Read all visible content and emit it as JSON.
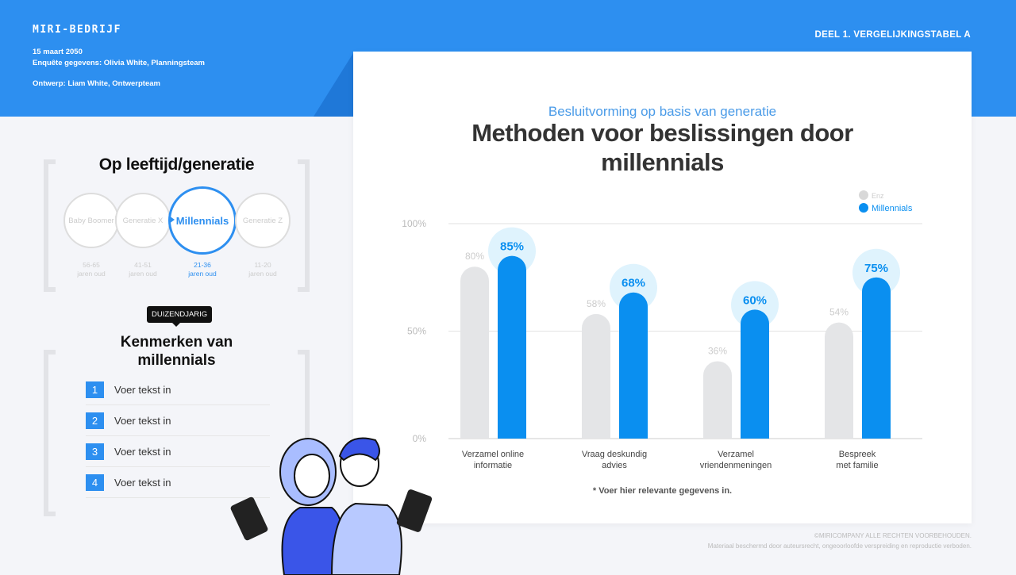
{
  "header": {
    "brand": "MIRI-BEDRIJF",
    "date": "15 maart 2050",
    "survey": "Enquête gegevens: Olivia White, Planningsteam",
    "design": "Ontwerp: Liam White, Ontwerpteam",
    "section": "DEEL 1. VERGELIJKINGSTABEL A"
  },
  "left": {
    "gen_title": "Op leeftijd/generatie",
    "generations": [
      {
        "name": "Baby Boomer",
        "age": "56-65",
        "unit": "jaren oud"
      },
      {
        "name": "Generatie X",
        "age": "41-51",
        "unit": "jaren oud"
      },
      {
        "name": "Millennials",
        "age": "21-36",
        "unit": "jaren oud"
      },
      {
        "name": "Generatie Z",
        "age": "11-20",
        "unit": "jaren oud"
      }
    ],
    "tag": "DUIZENDJARIG",
    "traits_title": "Kenmerken van millennials",
    "traits": [
      {
        "n": "1",
        "text": "Voer tekst in"
      },
      {
        "n": "2",
        "text": "Voer tekst in"
      },
      {
        "n": "3",
        "text": "Voer tekst in"
      },
      {
        "n": "4",
        "text": "Voer tekst in"
      }
    ]
  },
  "card": {
    "subtitle": "Besluitvorming op basis van generatie",
    "title": "Methoden voor beslissingen door millennials",
    "note": "* Voer hier relevante gegevens in."
  },
  "chart_data": {
    "type": "bar",
    "categories": [
      "Verzamel online informatie",
      "Vraag deskundig advies",
      "Verzamel vriendenmeningen",
      "Bespreek met familie"
    ],
    "series": [
      {
        "name": "Enz",
        "values": [
          80,
          58,
          36,
          54
        ],
        "color": "#e4e5e7"
      },
      {
        "name": "Millennials",
        "values": [
          85,
          68,
          60,
          75
        ],
        "color": "#0a8ff0"
      }
    ],
    "yticks": [
      "0%",
      "50%",
      "100%"
    ],
    "ylim": [
      0,
      100
    ],
    "legend": "top-right",
    "grid": true
  },
  "footer": {
    "copyright": "©MIRICOMPANY ALLE RECHTEN VOORBEHOUDEN.",
    "notice": "Materiaal beschermd door auteursrecht, ongeoorloofde verspreiding en reproductie verboden."
  }
}
